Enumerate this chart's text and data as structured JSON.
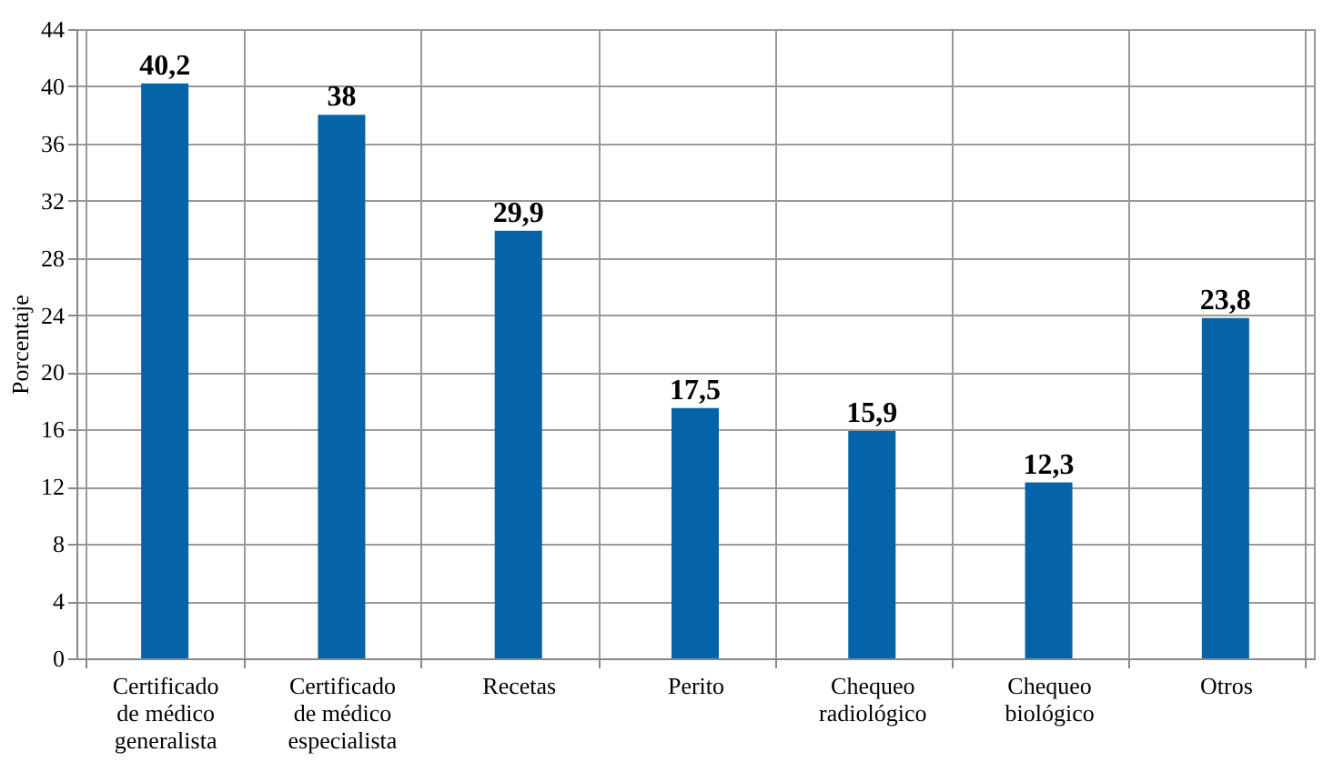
{
  "chart_data": {
    "type": "bar",
    "ylabel": "Porcentaje",
    "categories": [
      "Certificado\nde médico\ngeneralista",
      "Certificado\nde médico\nespecialista",
      "Recetas",
      "Perito",
      "Chequeo\nradiológico",
      "Chequeo\nbiológico",
      "Otros"
    ],
    "values": [
      40.2,
      38,
      29.9,
      17.5,
      15.9,
      12.3,
      23.8
    ],
    "value_labels": [
      "40,2",
      "38",
      "29,9",
      "17,5",
      "15,9",
      "12,3",
      "23,8"
    ],
    "color": "#0563a7",
    "ylim": [
      0,
      44
    ],
    "yticks": [
      0,
      4,
      8,
      12,
      16,
      20,
      24,
      28,
      32,
      36,
      40,
      44
    ],
    "grid": true
  }
}
